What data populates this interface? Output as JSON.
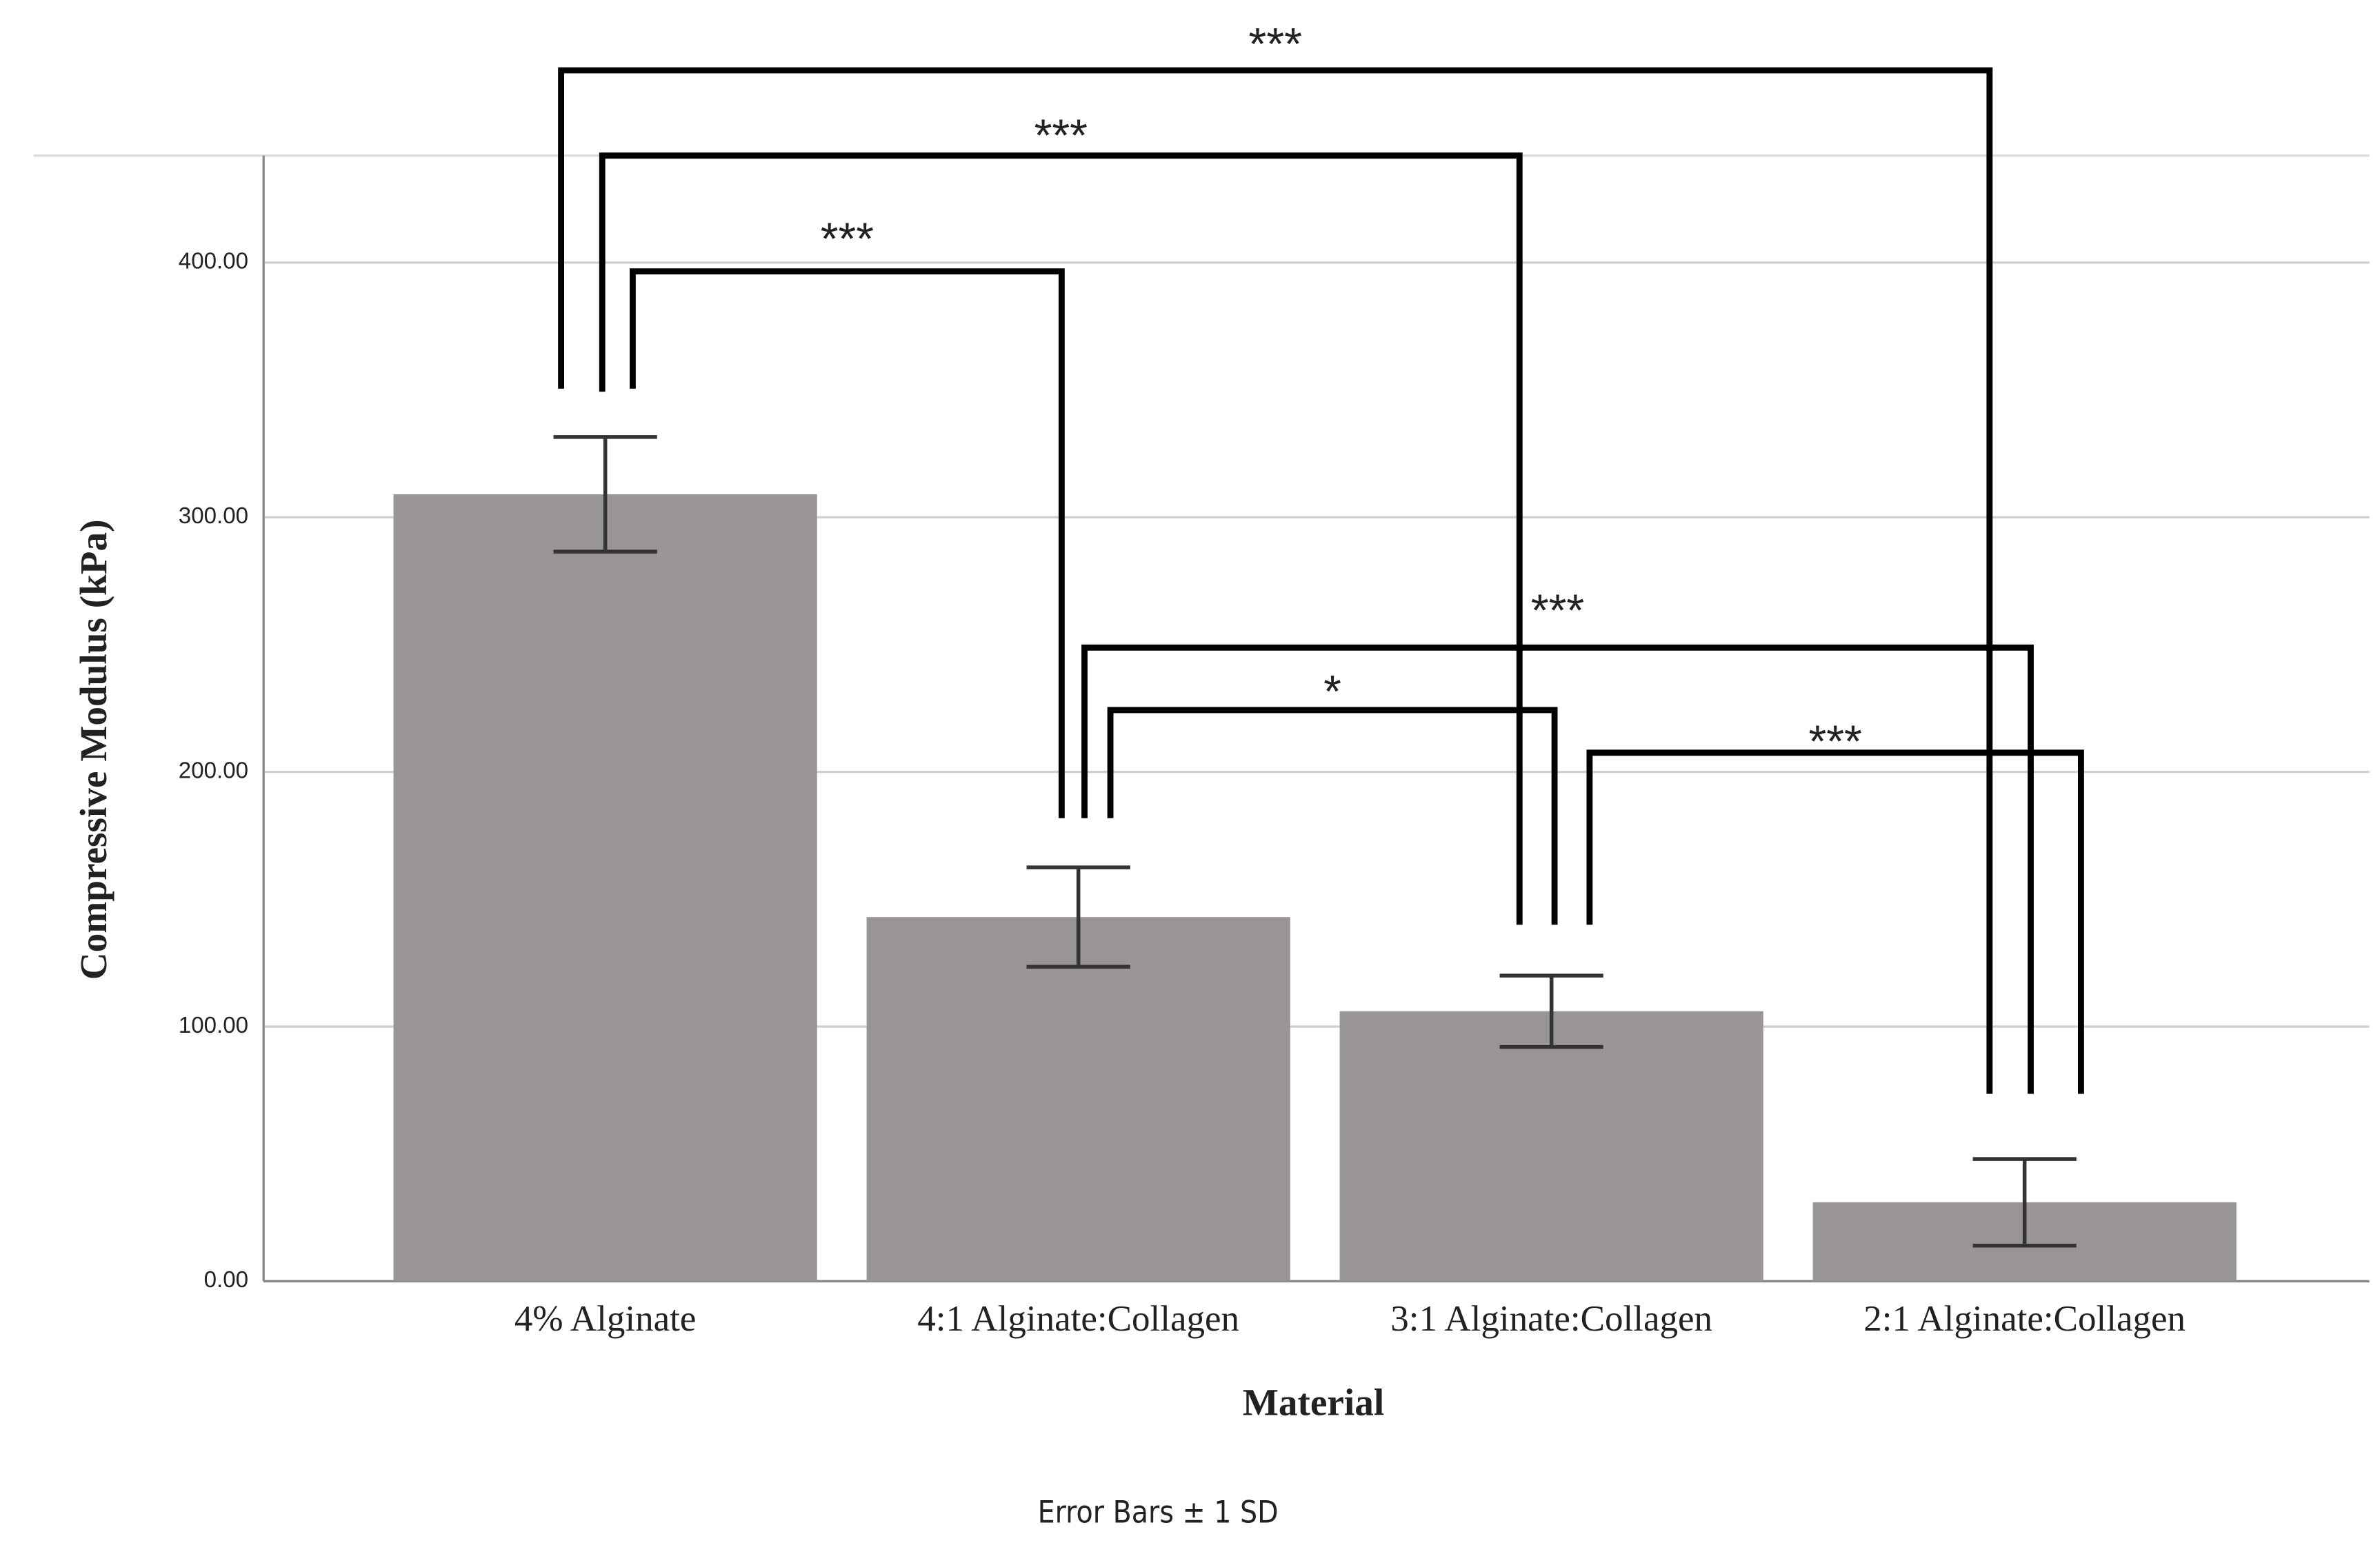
{
  "chart_data": {
    "type": "bar",
    "x_label": "Material",
    "y_label": "Compressive Modulus (kPa)",
    "footnote": "Error Bars ± 1 SD",
    "categories": [
      "4% Alginate",
      "4:1 Alginate:Collagen",
      "3:1 Alginate:Collagen",
      "2:1 Alginate:Collagen"
    ],
    "series": [
      {
        "color": "#989497",
        "values": [
          309,
          143,
          106,
          31
        ],
        "errors": [
          22.5,
          19.5,
          14,
          17
        ]
      }
    ],
    "ylim": [
      0,
      442
    ],
    "yticks": [
      {
        "value": 0,
        "label": "0.00"
      },
      {
        "value": 100,
        "label": "100.00"
      },
      {
        "value": 200,
        "label": "200.00"
      },
      {
        "value": 300,
        "label": "300.00"
      },
      {
        "value": 400,
        "label": "400.00"
      }
    ],
    "grid": true,
    "significance": [
      {
        "pair": [
          0,
          3
        ],
        "label": "***"
      },
      {
        "pair": [
          0,
          2
        ],
        "label": "***"
      },
      {
        "pair": [
          0,
          1
        ],
        "label": "***"
      },
      {
        "pair": [
          1,
          3
        ],
        "label": "***"
      },
      {
        "pair": [
          1,
          2
        ],
        "label": "*"
      },
      {
        "pair": [
          2,
          3
        ],
        "label": "***"
      }
    ]
  }
}
